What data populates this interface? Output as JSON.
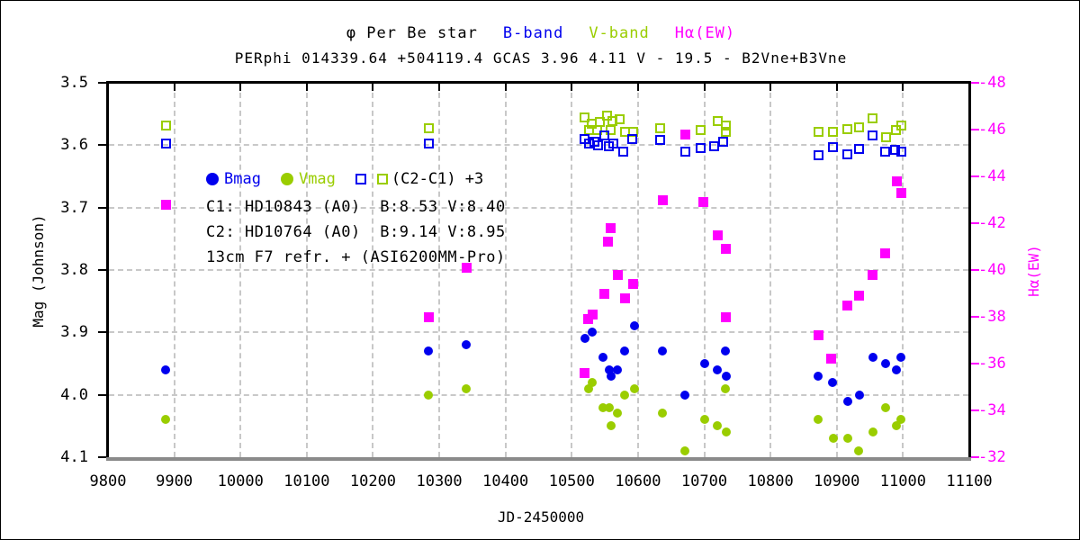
{
  "titles": {
    "line1_parts": [
      {
        "text": "φ Per  Be star",
        "color_key": "text_black"
      },
      {
        "text": "B-band",
        "color_key": "b_blue"
      },
      {
        "text": "V-band",
        "color_key": "v_green"
      },
      {
        "text": "Hα(EW)",
        "color_key": "ha_magenta"
      }
    ],
    "line2": "PERphi 014339.64 +504119.4 GCAS 3.96 4.11 V - 19.5 - B2Vne+B3Vne"
  },
  "legend": {
    "bmag_label": "Bmag",
    "vmag_label": "Vmag",
    "comp_label": "(C2-C1) +3"
  },
  "annotations": {
    "c1": "C1: HD10843 (A0)  B:8.53 V:8.40",
    "c2": "C2: HD10764 (A0)  B:9.14 V:8.95",
    "scope": "13cm F7 refr. + (ASI6200MM-Pro)"
  },
  "axes": {
    "left": {
      "label": "Mag (Johnson)",
      "ticks": [
        3.5,
        3.6,
        3.7,
        3.8,
        3.9,
        4.0,
        4.1
      ]
    },
    "right": {
      "label": "Hα(EW)",
      "ticks": [
        -48,
        -46,
        -44,
        -42,
        -40,
        -38,
        -36,
        -34,
        -32
      ]
    },
    "x": {
      "label": "JD-2450000",
      "ticks": [
        9800,
        9900,
        10000,
        10100,
        10200,
        10300,
        10400,
        10500,
        10600,
        10700,
        10800,
        10900,
        11000,
        11100
      ]
    }
  },
  "colors": {
    "b_blue": "#0000ee",
    "v_green": "#9acd00",
    "ha_magenta": "#ff00ff",
    "text_black": "#000000",
    "grid_gray": "#c8c8c8",
    "axis_bottom_gray": "#8a8a8a"
  },
  "chart_data": {
    "type": "scatter",
    "title": "phi Per Be star photometry and Halpha EW",
    "xlabel": "JD-2450000",
    "ylabel_left": "Mag (Johnson)",
    "ylabel_right": "Ha(EW)",
    "x_range": [
      9800,
      11100
    ],
    "y_left_range": [
      3.5,
      4.1
    ],
    "y_right_range": [
      -48,
      -32
    ],
    "grid": "dashed",
    "series": [
      {
        "name": "(C2-C1)+3 V-band",
        "marker": "open-square",
        "color_key": "v_green",
        "axis": "left",
        "points": [
          [
            9887,
            3.569
          ],
          [
            10284,
            3.573
          ],
          [
            10519,
            3.555
          ],
          [
            10526,
            3.576
          ],
          [
            10530,
            3.565
          ],
          [
            10538,
            3.575
          ],
          [
            10543,
            3.563
          ],
          [
            10553,
            3.553
          ],
          [
            10558,
            3.576
          ],
          [
            10561,
            3.561
          ],
          [
            10572,
            3.558
          ],
          [
            10580,
            3.578
          ],
          [
            10592,
            3.578
          ],
          [
            10634,
            3.573
          ],
          [
            10695,
            3.575
          ],
          [
            10721,
            3.561
          ],
          [
            10732,
            3.569
          ],
          [
            10732,
            3.579
          ],
          [
            10872,
            3.579
          ],
          [
            10894,
            3.579
          ],
          [
            10916,
            3.574
          ],
          [
            10933,
            3.572
          ],
          [
            10954,
            3.557
          ],
          [
            10974,
            3.587
          ],
          [
            10989,
            3.575
          ],
          [
            10997,
            3.569
          ]
        ]
      },
      {
        "name": "(C2-C1)+3 B-band",
        "marker": "open-square",
        "color_key": "b_blue",
        "axis": "left",
        "points": [
          [
            9887,
            3.597
          ],
          [
            10284,
            3.597
          ],
          [
            10519,
            3.59
          ],
          [
            10526,
            3.598
          ],
          [
            10534,
            3.594
          ],
          [
            10539,
            3.6
          ],
          [
            10549,
            3.585
          ],
          [
            10556,
            3.601
          ],
          [
            10563,
            3.597
          ],
          [
            10578,
            3.611
          ],
          [
            10591,
            3.59
          ],
          [
            10634,
            3.592
          ],
          [
            10671,
            3.61
          ],
          [
            10695,
            3.604
          ],
          [
            10715,
            3.601
          ],
          [
            10729,
            3.594
          ],
          [
            10872,
            3.616
          ],
          [
            10894,
            3.603
          ],
          [
            10916,
            3.614
          ],
          [
            10933,
            3.606
          ],
          [
            10954,
            3.585
          ],
          [
            10973,
            3.61
          ],
          [
            10988,
            3.608
          ],
          [
            10997,
            3.61
          ]
        ]
      },
      {
        "name": "Bmag",
        "marker": "circle",
        "color_key": "b_blue",
        "axis": "left",
        "points": [
          [
            9887,
            3.96
          ],
          [
            10284,
            3.93
          ],
          [
            10341,
            3.92
          ],
          [
            10520,
            3.91
          ],
          [
            10531,
            3.9
          ],
          [
            10547,
            3.94
          ],
          [
            10556,
            3.96
          ],
          [
            10560,
            3.97
          ],
          [
            10569,
            3.96
          ],
          [
            10580,
            3.93
          ],
          [
            10594,
            3.89
          ],
          [
            10637,
            3.93
          ],
          [
            10671,
            4.0
          ],
          [
            10700,
            3.95
          ],
          [
            10720,
            3.96
          ],
          [
            10732,
            3.93
          ],
          [
            10733,
            3.97
          ],
          [
            10872,
            3.97
          ],
          [
            10893,
            3.98
          ],
          [
            10917,
            4.01
          ],
          [
            10934,
            4.0
          ],
          [
            10954,
            3.94
          ],
          [
            10973,
            3.95
          ],
          [
            10990,
            3.96
          ],
          [
            10997,
            3.94
          ]
        ]
      },
      {
        "name": "Vmag",
        "marker": "circle",
        "color_key": "v_green",
        "axis": "left",
        "points": [
          [
            9887,
            4.04
          ],
          [
            10284,
            4.0
          ],
          [
            10341,
            3.99
          ],
          [
            10525,
            3.99
          ],
          [
            10531,
            3.98
          ],
          [
            10547,
            4.02
          ],
          [
            10556,
            4.02
          ],
          [
            10560,
            4.05
          ],
          [
            10569,
            4.03
          ],
          [
            10580,
            4.0
          ],
          [
            10594,
            3.99
          ],
          [
            10637,
            4.03
          ],
          [
            10671,
            4.09
          ],
          [
            10700,
            4.04
          ],
          [
            10720,
            4.05
          ],
          [
            10732,
            3.99
          ],
          [
            10733,
            4.06
          ],
          [
            10872,
            4.04
          ],
          [
            10895,
            4.07
          ],
          [
            10916,
            4.07
          ],
          [
            10933,
            4.09
          ],
          [
            10954,
            4.06
          ],
          [
            10973,
            4.02
          ],
          [
            10990,
            4.05
          ],
          [
            10997,
            4.04
          ]
        ]
      },
      {
        "name": "Halpha EW",
        "marker": "square",
        "color_key": "ha_magenta",
        "axis": "right",
        "points": [
          [
            9887,
            -42.8
          ],
          [
            10284,
            -38.0
          ],
          [
            10341,
            -40.1
          ],
          [
            10519,
            -35.6
          ],
          [
            10525,
            -37.9
          ],
          [
            10532,
            -38.1
          ],
          [
            10549,
            -39.0
          ],
          [
            10555,
            -41.2
          ],
          [
            10558,
            -41.8
          ],
          [
            10570,
            -39.8
          ],
          [
            10580,
            -38.8
          ],
          [
            10593,
            -39.4
          ],
          [
            10638,
            -43.0
          ],
          [
            10671,
            -45.8
          ],
          [
            10698,
            -42.9
          ],
          [
            10720,
            -41.5
          ],
          [
            10733,
            -40.9
          ],
          [
            10733,
            -38.0
          ],
          [
            10872,
            -37.2
          ],
          [
            10892,
            -36.2
          ],
          [
            10916,
            -38.5
          ],
          [
            10933,
            -38.9
          ],
          [
            10954,
            -39.8
          ],
          [
            10973,
            -40.7
          ],
          [
            10990,
            -43.8
          ],
          [
            10997,
            -43.3
          ]
        ]
      }
    ]
  }
}
